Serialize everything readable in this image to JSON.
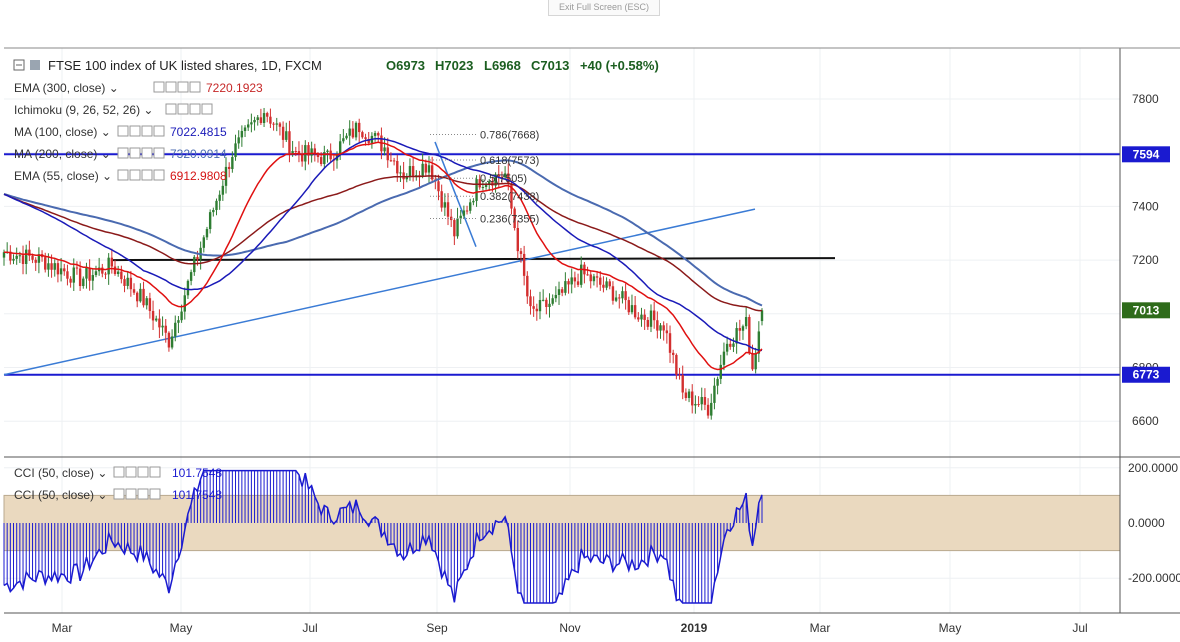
{
  "window": {
    "exit_fullscreen_label": "Exit Full Screen (ESC)"
  },
  "header": {
    "title": "FTSE 100 index of UK listed shares, 1D, FXCM",
    "open": "O6973",
    "high": "H7023",
    "low": "L6968",
    "close": "C7013",
    "change": "+40 (+0.58%)"
  },
  "indicators": [
    {
      "label": "EMA (300, close)",
      "value": "7220.1923",
      "color": "#c62828"
    },
    {
      "label": "Ichimoku (9, 26, 52, 26)",
      "value": "",
      "color": "#4a78c8"
    },
    {
      "label": "MA (100, close)",
      "value": "7022.4815",
      "color": "#1a1ab8"
    },
    {
      "label": "MA (200, close)",
      "value": "7320.0914",
      "color": "#4a6ab0"
    },
    {
      "label": "EMA (55, close)",
      "value": "6912.9808",
      "color": "#d41414"
    }
  ],
  "cci_legend": [
    {
      "label": "CCI (50, close)",
      "value": "101.7548"
    },
    {
      "label": "CCI (50, close)",
      "value": "101.7548"
    }
  ],
  "price_axis": {
    "ticks": [
      "7800",
      "7600",
      "7400",
      "7200",
      "7000",
      "6800",
      "6600"
    ]
  },
  "cci_axis": {
    "ticks": [
      "200.0000",
      "0.0000",
      "-200.0000"
    ]
  },
  "time_axis": {
    "labels": [
      "Mar",
      "May",
      "Jul",
      "Sep",
      "Nov",
      "2019",
      "Mar",
      "May",
      "Jul"
    ]
  },
  "level_badges": {
    "upper": "7594",
    "last": "7013",
    "lower": "6773"
  },
  "fibonacci": {
    "levels": [
      {
        "ratio": 0.786,
        "label": "0.786(7668)",
        "price": 7668
      },
      {
        "ratio": 0.618,
        "label": "0.618(7573)",
        "price": 7573
      },
      {
        "ratio": 0.5,
        "label": "0.5(7505)",
        "price": 7505
      },
      {
        "ratio": 0.382,
        "label": "0.382(7438)",
        "price": 7438
      },
      {
        "ratio": 0.236,
        "label": "0.236(7355)",
        "price": 7355
      }
    ]
  },
  "colors": {
    "up": "#2e7d32",
    "down": "#d32f2f",
    "badge_blue": "#1a1ad0",
    "badge_green": "#2e6b1a",
    "cci_band": "#ead9bf"
  },
  "chart_data": {
    "type": "candlestick",
    "x_range": [
      "2018-02",
      "2019-07"
    ],
    "ylim": [
      6480,
      7880
    ],
    "horizontal_levels": [
      7594,
      6773
    ],
    "support_line": 7200,
    "series": [
      {
        "name": "MA (100, close)",
        "value": 7022.4815
      },
      {
        "name": "MA (200, close)",
        "value": 7320.0914
      },
      {
        "name": "EMA (55, close)",
        "value": 6912.9808
      },
      {
        "name": "EMA (300, close)",
        "value": 7220.1923
      }
    ],
    "last_candle": {
      "open": 6973,
      "high": 7023,
      "low": 6968,
      "close": 7013
    },
    "cci": {
      "period": 50,
      "last": 101.7548,
      "band": [
        -100,
        100
      ],
      "ylim": [
        -300,
        220
      ]
    }
  }
}
